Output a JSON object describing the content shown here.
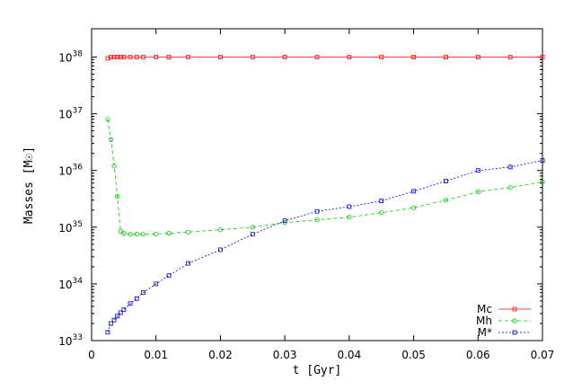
{
  "chart_data": {
    "type": "line",
    "xlabel": "t [Gyr]",
    "ylabel": "Masses [M☉]",
    "x": [
      0.0025,
      0.003,
      0.0035,
      0.004,
      0.0045,
      0.005,
      0.006,
      0.007,
      0.008,
      0.01,
      0.012,
      0.015,
      0.02,
      0.025,
      0.03,
      0.035,
      0.04,
      0.045,
      0.05,
      0.055,
      0.06,
      0.065,
      0.07
    ],
    "series": [
      {
        "name": "Mc",
        "color": "#ff0000",
        "linestyle": "solid",
        "marker": "square",
        "values": [
          9.5e+37,
          1e+38,
          1e+38,
          1e+38,
          1e+38,
          1e+38,
          1e+38,
          1e+38,
          1e+38,
          1e+38,
          1e+38,
          1e+38,
          1e+38,
          1e+38,
          1e+38,
          1e+38,
          1e+38,
          1e+38,
          1e+38,
          1e+38,
          1e+38,
          1e+38,
          1e+38
        ]
      },
      {
        "name": "Mh",
        "color": "#00cc00",
        "linestyle": "dashed",
        "marker": "circle",
        "values": [
          8e+36,
          3.5e+36,
          1.2e+36,
          3.5e+35,
          8.5e+34,
          7.8e+34,
          7.5e+34,
          7.5e+34,
          7.5e+34,
          7.6e+34,
          7.8e+34,
          8.2e+34,
          9e+34,
          1e+35,
          1.2e+35,
          1.35e+35,
          1.5e+35,
          1.8e+35,
          2.2e+35,
          3e+35,
          4.2e+35,
          5e+35,
          6.3e+35
        ]
      },
      {
        "name": "M*",
        "color": "#0000cc",
        "linestyle": "dotted",
        "marker": "square",
        "values": [
          1.4e+33,
          2e+33,
          2.3e+33,
          2.7e+33,
          3.1e+33,
          3.5e+33,
          4.5e+33,
          5.5e+33,
          7e+33,
          1e+34,
          1.4e+34,
          2.3e+34,
          4e+34,
          7.5e+34,
          1.3e+35,
          1.9e+35,
          2.3e+35,
          2.9e+35,
          4.3e+35,
          6.5e+35,
          1e+36,
          1.15e+36,
          1.5e+36
        ]
      }
    ],
    "xlim": [
      0,
      0.07
    ],
    "xticks": [
      0,
      0.01,
      0.02,
      0.03,
      0.04,
      0.05,
      0.06,
      0.07
    ],
    "ylim": [
      1e+33,
      3.16e+38
    ],
    "ylog": true,
    "yticks": [
      {
        "value": 1e+33,
        "label": "10",
        "power": "33"
      },
      {
        "value": 1e+34,
        "label": "10",
        "power": "34"
      },
      {
        "value": 1e+35,
        "label": "10",
        "power": "35"
      },
      {
        "value": 1e+36,
        "label": "10",
        "power": "36"
      },
      {
        "value": 1e+37,
        "label": "10",
        "power": "37"
      },
      {
        "value": 1e+38,
        "label": "10",
        "power": "38"
      }
    ],
    "legend": "lower right"
  }
}
